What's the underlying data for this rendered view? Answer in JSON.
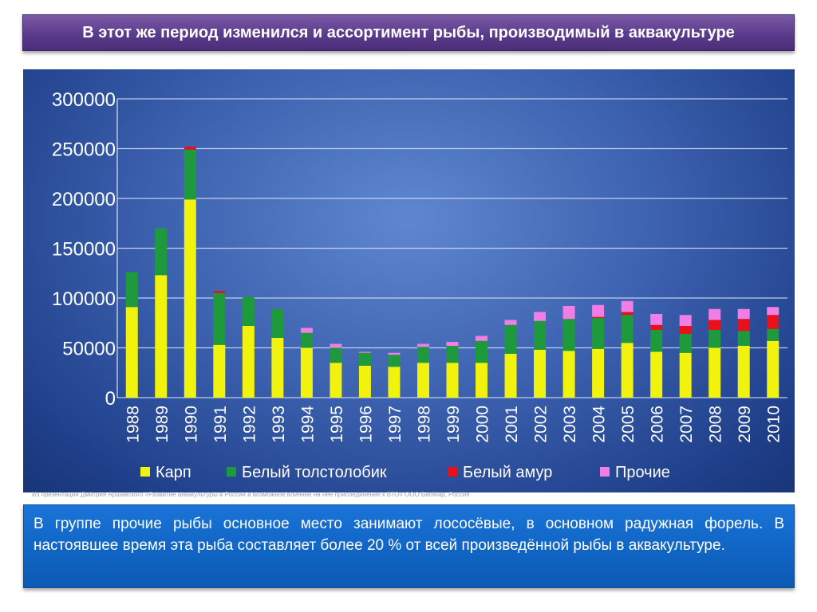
{
  "slide": {
    "title": "В этот же период изменился и ассортимент рыбы, производимый в аквакультуре",
    "source": "Из презентации Дмитрия Аршавского «Развитие аквакультуры в России и возможное влияние на неё присоединение к ВТО» ООО БиоМар, Россия",
    "text": "В группе прочие рыбы основное место занимают лососёвые, в основном радужная форель. В настоявшее время эта рыба составляет более 20 % от всей произведённой рыбы в аквакультуре."
  },
  "colors": {
    "title_bg": "#5b3b8c",
    "info_bg": "#1166c6",
    "karp": "#f2f20f",
    "tolstolobik": "#1e9a3c",
    "amur": "#e8101a",
    "prochie": "#f07ee6"
  },
  "chart_data": {
    "type": "bar",
    "stacked": true,
    "categories": [
      "1988",
      "1989",
      "1990",
      "1991",
      "1992",
      "1993",
      "1994",
      "1995",
      "1996",
      "1997",
      "1998",
      "1999",
      "2000",
      "2001",
      "2002",
      "2003",
      "2004",
      "2005",
      "2006",
      "2007",
      "2008",
      "2009",
      "2010"
    ],
    "series": [
      {
        "name": "Карп",
        "color": "#f2f20f",
        "values": [
          91000,
          123000,
          199000,
          53000,
          72000,
          60000,
          50000,
          35000,
          32000,
          31000,
          35000,
          35000,
          35000,
          44000,
          48000,
          47000,
          49000,
          55000,
          46000,
          45000,
          50000,
          52000,
          57000
        ]
      },
      {
        "name": "Белый толстолобик",
        "color": "#1e9a3c",
        "values": [
          35000,
          47000,
          50000,
          52000,
          29000,
          29000,
          15000,
          15000,
          13000,
          12000,
          16000,
          17000,
          22000,
          29000,
          29000,
          32000,
          31000,
          28000,
          22000,
          19000,
          18000,
          15000,
          12000
        ]
      },
      {
        "name": "Белый амур",
        "color": "#e8101a",
        "values": [
          0,
          0,
          3000,
          2000,
          0,
          0,
          0,
          0,
          0,
          0,
          0,
          0,
          0,
          0,
          0,
          0,
          1000,
          3000,
          5000,
          8000,
          10000,
          12000,
          14000
        ]
      },
      {
        "name": "Прочие",
        "color": "#f07ee6",
        "values": [
          0,
          0,
          0,
          0,
          0,
          0,
          5000,
          4000,
          1000,
          2000,
          3000,
          4000,
          5000,
          5000,
          9000,
          13000,
          12000,
          11000,
          11000,
          11000,
          11000,
          10000,
          8000
        ]
      }
    ],
    "yticks": [
      "0",
      "50000",
      "100000",
      "150000",
      "200000",
      "250000",
      "300000"
    ],
    "ylim": [
      0,
      300000
    ],
    "grid": true,
    "legend_position": "bottom"
  }
}
